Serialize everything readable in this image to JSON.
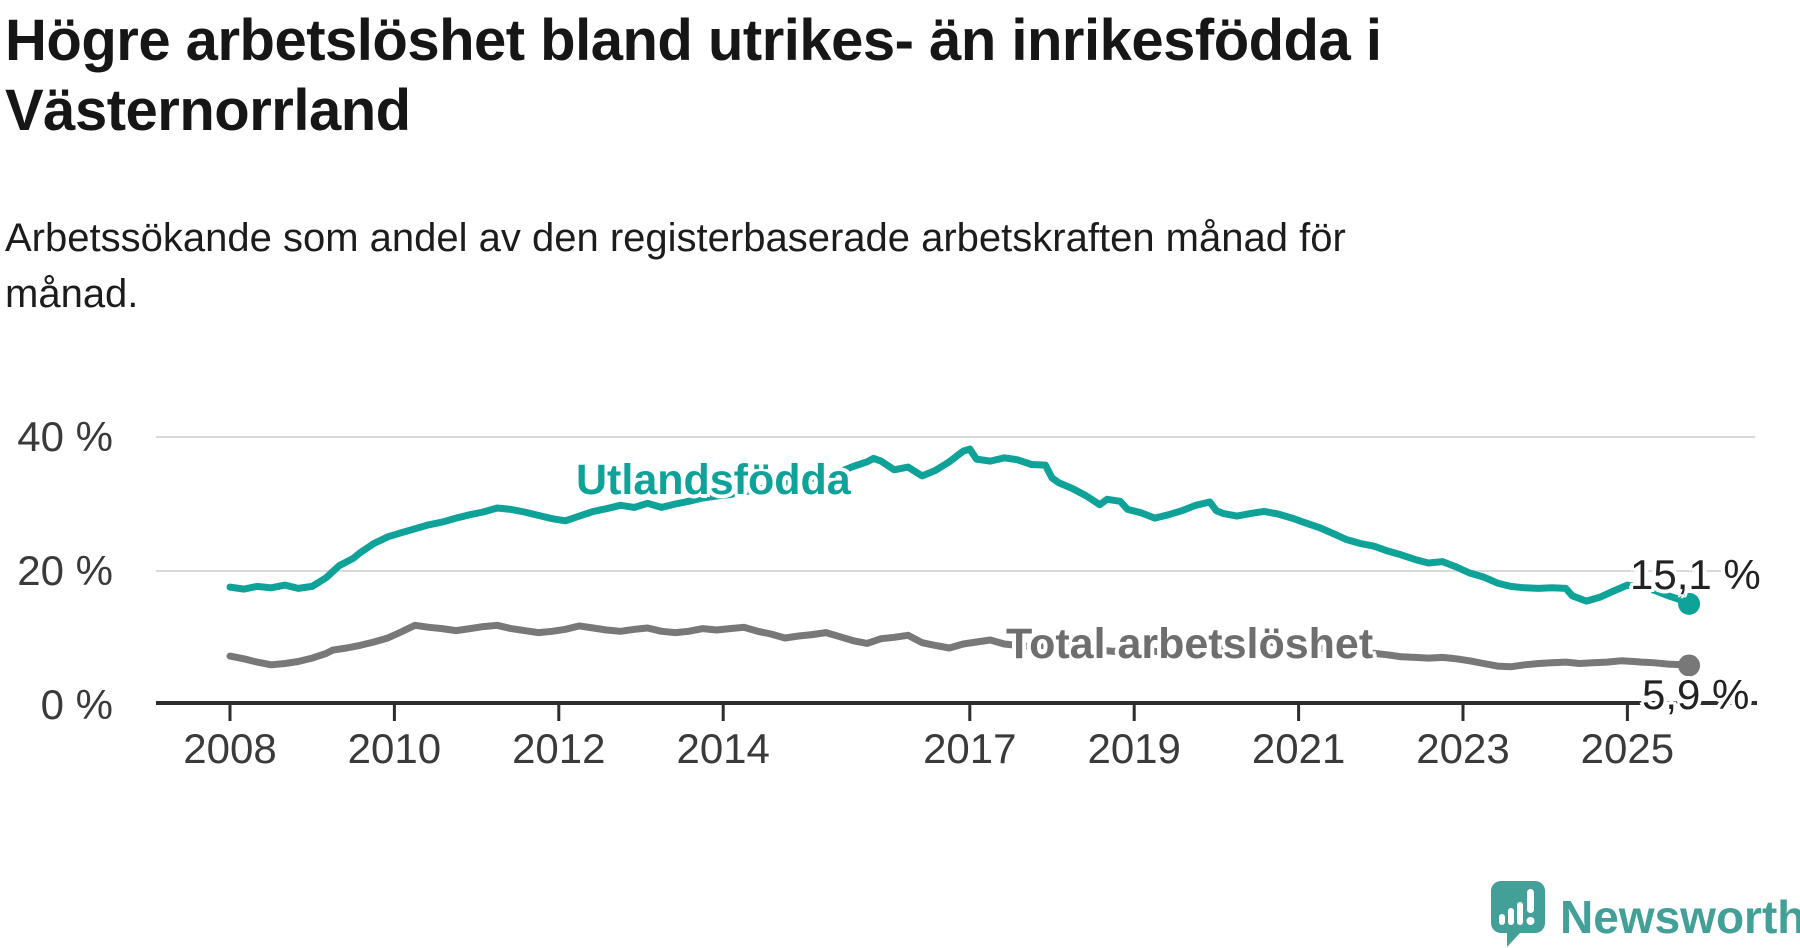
{
  "header": {
    "title_line1": "Högre arbetslöshet bland utrikes- än inrikesfödda i",
    "title_line2": "Västernorrland",
    "subtitle_line1": "Arbetssökande som andel av den registerbaserade arbetskraften månad för",
    "subtitle_line2": "månad."
  },
  "branding": {
    "logo_text": "Newsworthy",
    "logo_color": "#43A098",
    "logo_icon": "speech-bubble-bar-chart-exclamation"
  },
  "chart_data": {
    "type": "line",
    "title": "Högre arbetslöshet bland utrikes- än inrikesfödda i Västernorrland",
    "subtitle": "Arbetssökande som andel av den registerbaserade arbetskraften månad för månad.",
    "unit": "%",
    "grid": "horizontal",
    "legend_position": "inline-labels",
    "xlim": [
      2007.1,
      2026.6
    ],
    "ylim": [
      0,
      45
    ],
    "x_ticks": [
      2008,
      2010,
      2012,
      2014,
      2017,
      2019,
      2021,
      2023,
      2025
    ],
    "x_tick_labels": [
      "2008",
      "2010",
      "2012",
      "2014",
      "2017",
      "2019",
      "2021",
      "2023",
      "2025"
    ],
    "y_ticks": [
      40,
      20,
      0
    ],
    "y_tick_labels": [
      "40 %",
      "20 %",
      "0 %"
    ],
    "colors": {
      "grid": "#d9d9d9",
      "axis": "#2d2d2d",
      "tick_label": "#3a3a3a"
    },
    "series": [
      {
        "name": "Utlandsfödda",
        "color": "#0FA299",
        "end_label": "15,1 %",
        "end_value": 15.1,
        "points": [
          [
            2008.0,
            17.6
          ],
          [
            2008.17,
            17.3
          ],
          [
            2008.33,
            17.7
          ],
          [
            2008.5,
            17.5
          ],
          [
            2008.67,
            17.9
          ],
          [
            2008.83,
            17.4
          ],
          [
            2009.0,
            17.7
          ],
          [
            2009.17,
            19.0
          ],
          [
            2009.33,
            20.8
          ],
          [
            2009.5,
            21.9
          ],
          [
            2009.58,
            22.7
          ],
          [
            2009.75,
            24.1
          ],
          [
            2009.92,
            25.1
          ],
          [
            2010.08,
            25.7
          ],
          [
            2010.25,
            26.3
          ],
          [
            2010.42,
            26.9
          ],
          [
            2010.58,
            27.3
          ],
          [
            2010.75,
            27.9
          ],
          [
            2010.92,
            28.4
          ],
          [
            2011.08,
            28.8
          ],
          [
            2011.25,
            29.4
          ],
          [
            2011.42,
            29.2
          ],
          [
            2011.58,
            28.8
          ],
          [
            2011.75,
            28.3
          ],
          [
            2011.92,
            27.8
          ],
          [
            2012.08,
            27.5
          ],
          [
            2012.25,
            28.2
          ],
          [
            2012.42,
            28.9
          ],
          [
            2012.58,
            29.3
          ],
          [
            2012.75,
            29.8
          ],
          [
            2012.92,
            29.5
          ],
          [
            2013.08,
            30.1
          ],
          [
            2013.25,
            29.5
          ],
          [
            2013.42,
            30.0
          ],
          [
            2013.58,
            30.4
          ],
          [
            2013.75,
            30.9
          ],
          [
            2013.92,
            31.2
          ],
          [
            2014.08,
            31.4
          ],
          [
            2014.25,
            31.8
          ],
          [
            2014.42,
            32.2
          ],
          [
            2014.58,
            32.5
          ],
          [
            2014.75,
            33.0
          ],
          [
            2014.92,
            33.4
          ],
          [
            2015.08,
            33.8
          ],
          [
            2015.25,
            34.3
          ],
          [
            2015.42,
            34.8
          ],
          [
            2015.58,
            35.6
          ],
          [
            2015.75,
            36.3
          ],
          [
            2015.83,
            36.8
          ],
          [
            2015.92,
            36.4
          ],
          [
            2016.08,
            35.1
          ],
          [
            2016.25,
            35.5
          ],
          [
            2016.42,
            34.2
          ],
          [
            2016.58,
            35.0
          ],
          [
            2016.75,
            36.3
          ],
          [
            2016.92,
            37.9
          ],
          [
            2017.0,
            38.2
          ],
          [
            2017.08,
            36.7
          ],
          [
            2017.25,
            36.4
          ],
          [
            2017.42,
            36.9
          ],
          [
            2017.58,
            36.6
          ],
          [
            2017.75,
            35.9
          ],
          [
            2017.92,
            35.8
          ],
          [
            2018.0,
            33.9
          ],
          [
            2018.08,
            33.2
          ],
          [
            2018.25,
            32.3
          ],
          [
            2018.42,
            31.2
          ],
          [
            2018.58,
            29.9
          ],
          [
            2018.67,
            30.7
          ],
          [
            2018.83,
            30.4
          ],
          [
            2018.92,
            29.2
          ],
          [
            2019.08,
            28.7
          ],
          [
            2019.25,
            27.9
          ],
          [
            2019.42,
            28.4
          ],
          [
            2019.58,
            29.0
          ],
          [
            2019.75,
            29.8
          ],
          [
            2019.92,
            30.3
          ],
          [
            2020.0,
            29.0
          ],
          [
            2020.08,
            28.6
          ],
          [
            2020.25,
            28.2
          ],
          [
            2020.42,
            28.6
          ],
          [
            2020.58,
            28.9
          ],
          [
            2020.75,
            28.5
          ],
          [
            2020.92,
            27.9
          ],
          [
            2021.08,
            27.2
          ],
          [
            2021.25,
            26.5
          ],
          [
            2021.42,
            25.6
          ],
          [
            2021.58,
            24.7
          ],
          [
            2021.75,
            24.1
          ],
          [
            2021.92,
            23.7
          ],
          [
            2022.08,
            23.0
          ],
          [
            2022.25,
            22.4
          ],
          [
            2022.42,
            21.7
          ],
          [
            2022.58,
            21.2
          ],
          [
            2022.75,
            21.4
          ],
          [
            2022.92,
            20.6
          ],
          [
            2023.08,
            19.7
          ],
          [
            2023.25,
            19.1
          ],
          [
            2023.42,
            18.2
          ],
          [
            2023.58,
            17.7
          ],
          [
            2023.75,
            17.5
          ],
          [
            2023.92,
            17.4
          ],
          [
            2024.08,
            17.5
          ],
          [
            2024.25,
            17.4
          ],
          [
            2024.33,
            16.3
          ],
          [
            2024.5,
            15.5
          ],
          [
            2024.67,
            16.1
          ],
          [
            2024.83,
            17.0
          ],
          [
            2025.0,
            17.9
          ],
          [
            2025.17,
            17.6
          ],
          [
            2025.33,
            17.1
          ],
          [
            2025.5,
            16.3
          ],
          [
            2025.67,
            15.6
          ],
          [
            2025.75,
            15.1
          ]
        ]
      },
      {
        "name": "Total arbetslöshet",
        "color": "#787878",
        "label_color": "#6e6e6e",
        "end_label": "5,9 %",
        "end_value": 5.9,
        "points": [
          [
            2008.0,
            7.3
          ],
          [
            2008.17,
            6.9
          ],
          [
            2008.33,
            6.4
          ],
          [
            2008.5,
            6.0
          ],
          [
            2008.67,
            6.2
          ],
          [
            2008.83,
            6.5
          ],
          [
            2009.0,
            7.0
          ],
          [
            2009.17,
            7.7
          ],
          [
            2009.25,
            8.2
          ],
          [
            2009.42,
            8.5
          ],
          [
            2009.58,
            8.9
          ],
          [
            2009.75,
            9.4
          ],
          [
            2009.92,
            10.0
          ],
          [
            2010.08,
            10.9
          ],
          [
            2010.25,
            11.9
          ],
          [
            2010.42,
            11.6
          ],
          [
            2010.58,
            11.4
          ],
          [
            2010.75,
            11.1
          ],
          [
            2010.92,
            11.4
          ],
          [
            2011.08,
            11.7
          ],
          [
            2011.25,
            11.9
          ],
          [
            2011.42,
            11.4
          ],
          [
            2011.58,
            11.1
          ],
          [
            2011.75,
            10.8
          ],
          [
            2011.92,
            11.0
          ],
          [
            2012.08,
            11.3
          ],
          [
            2012.25,
            11.8
          ],
          [
            2012.42,
            11.5
          ],
          [
            2012.58,
            11.2
          ],
          [
            2012.75,
            11.0
          ],
          [
            2012.92,
            11.3
          ],
          [
            2013.08,
            11.5
          ],
          [
            2013.25,
            11.0
          ],
          [
            2013.42,
            10.8
          ],
          [
            2013.58,
            11.0
          ],
          [
            2013.75,
            11.4
          ],
          [
            2013.92,
            11.2
          ],
          [
            2014.08,
            11.4
          ],
          [
            2014.25,
            11.6
          ],
          [
            2014.42,
            11.0
          ],
          [
            2014.58,
            10.6
          ],
          [
            2014.75,
            10.0
          ],
          [
            2014.92,
            10.3
          ],
          [
            2015.08,
            10.5
          ],
          [
            2015.25,
            10.8
          ],
          [
            2015.42,
            10.2
          ],
          [
            2015.58,
            9.6
          ],
          [
            2015.75,
            9.2
          ],
          [
            2015.92,
            9.9
          ],
          [
            2016.08,
            10.1
          ],
          [
            2016.25,
            10.4
          ],
          [
            2016.42,
            9.3
          ],
          [
            2016.58,
            8.9
          ],
          [
            2016.75,
            8.5
          ],
          [
            2016.92,
            9.1
          ],
          [
            2017.08,
            9.4
          ],
          [
            2017.25,
            9.7
          ],
          [
            2017.42,
            9.1
          ],
          [
            2017.58,
            8.9
          ],
          [
            2017.75,
            8.7
          ],
          [
            2017.92,
            8.9
          ],
          [
            2018.08,
            9.0
          ],
          [
            2018.25,
            8.8
          ],
          [
            2018.42,
            8.4
          ],
          [
            2018.58,
            8.2
          ],
          [
            2018.75,
            8.0
          ],
          [
            2018.92,
            8.2
          ],
          [
            2019.08,
            8.3
          ],
          [
            2019.25,
            8.0
          ],
          [
            2019.42,
            7.8
          ],
          [
            2019.58,
            7.7
          ],
          [
            2019.75,
            7.9
          ],
          [
            2019.92,
            8.1
          ],
          [
            2020.08,
            8.4
          ],
          [
            2020.25,
            9.3
          ],
          [
            2020.42,
            9.6
          ],
          [
            2020.58,
            9.5
          ],
          [
            2020.75,
            9.2
          ],
          [
            2020.92,
            9.0
          ],
          [
            2021.08,
            8.8
          ],
          [
            2021.25,
            8.5
          ],
          [
            2021.42,
            8.2
          ],
          [
            2021.58,
            8.0
          ],
          [
            2021.75,
            7.8
          ],
          [
            2021.92,
            7.7
          ],
          [
            2022.08,
            7.5
          ],
          [
            2022.25,
            7.2
          ],
          [
            2022.42,
            7.1
          ],
          [
            2022.58,
            7.0
          ],
          [
            2022.75,
            7.1
          ],
          [
            2022.92,
            6.9
          ],
          [
            2023.08,
            6.6
          ],
          [
            2023.25,
            6.2
          ],
          [
            2023.42,
            5.8
          ],
          [
            2023.58,
            5.7
          ],
          [
            2023.75,
            6.0
          ],
          [
            2023.92,
            6.2
          ],
          [
            2024.08,
            6.3
          ],
          [
            2024.25,
            6.4
          ],
          [
            2024.42,
            6.2
          ],
          [
            2024.58,
            6.3
          ],
          [
            2024.75,
            6.4
          ],
          [
            2024.92,
            6.6
          ],
          [
            2025.08,
            6.5
          ],
          [
            2025.17,
            6.4
          ],
          [
            2025.33,
            6.3
          ],
          [
            2025.5,
            6.1
          ],
          [
            2025.67,
            6.0
          ],
          [
            2025.75,
            5.9
          ]
        ]
      }
    ]
  }
}
